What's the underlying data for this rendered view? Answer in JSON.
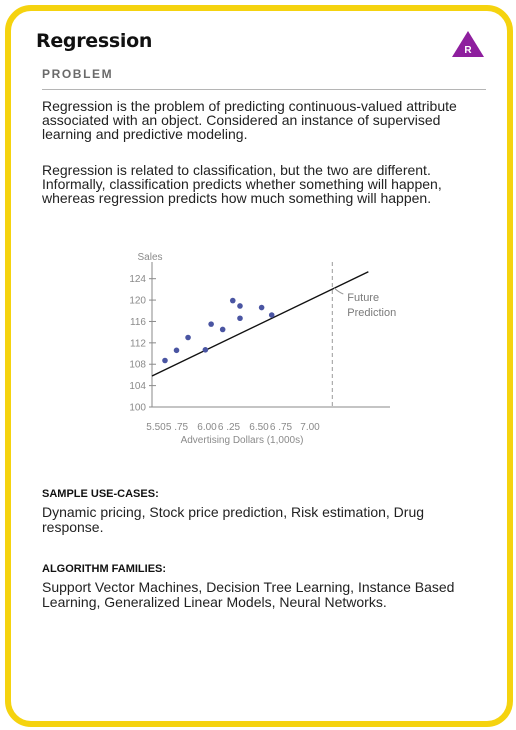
{
  "card": {
    "title": "Regression",
    "badge_letter": "R",
    "subtitle": "PROBLEM",
    "paragraph1": "Regression is the problem of predicting continuous-valued attribute associated with an object. Considered an instance of supervised learning and predictive modeling.",
    "paragraph2": "Regression is related to classification, but the two are different. Informally, classification predicts whether something will happen, whereas regression predicts how much something will happen."
  },
  "sections": {
    "use_cases_heading": "SAMPLE USE-CASES:",
    "use_cases_text": "Dynamic pricing, Stock price prediction, Risk estimation, Drug response.",
    "algorithms_heading": "ALGORITHM FAMILIES:",
    "algorithms_text": "Support Vector Machines, Decision Tree Learning, Instance Based Learning, Generalized Linear Models, Neural Networks."
  },
  "colors": {
    "border": "#f5d30f",
    "badge": "#8e1f9e",
    "points": "#4a55a2"
  },
  "chart_data": {
    "type": "scatter",
    "ylabel": "Sales",
    "xlabel": "Advertising Dollars (1,000s)",
    "y_ticks": [
      "124",
      "120",
      "116",
      "112",
      "108",
      "104",
      "100"
    ],
    "x_ticks": [
      "5.50",
      "5 .75",
      "6.00",
      "6 .25",
      "6.50",
      "6 .75",
      "7.00"
    ],
    "ylim": [
      100,
      126
    ],
    "xlim": [
      5.5,
      7.15
    ],
    "points": [
      {
        "x": 5.59,
        "y": 108.7
      },
      {
        "x": 5.67,
        "y": 110.6
      },
      {
        "x": 5.75,
        "y": 113.0
      },
      {
        "x": 5.87,
        "y": 110.7
      },
      {
        "x": 5.91,
        "y": 115.5
      },
      {
        "x": 5.99,
        "y": 114.5
      },
      {
        "x": 6.06,
        "y": 119.9
      },
      {
        "x": 6.11,
        "y": 118.9
      },
      {
        "x": 6.11,
        "y": 116.6
      },
      {
        "x": 6.26,
        "y": 118.6
      },
      {
        "x": 6.33,
        "y": 117.2
      }
    ],
    "regression_line": {
      "x": [
        5.5,
        7.0
      ],
      "y": [
        105.8,
        125.3
      ]
    },
    "prediction_x": 6.75,
    "annotation": "Future Prediction"
  }
}
